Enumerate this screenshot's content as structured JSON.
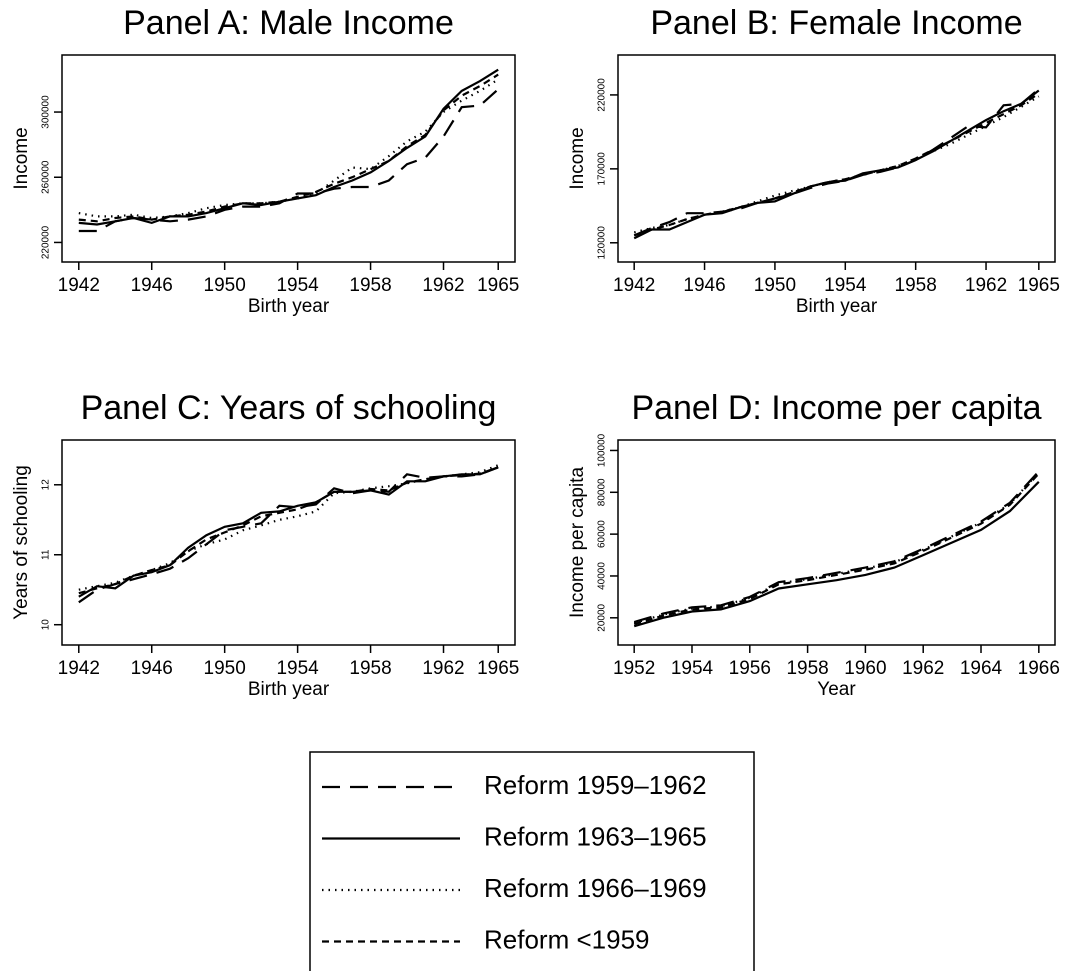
{
  "chart_data": [
    {
      "type": "line",
      "title": "Panel A: Male Income",
      "xlabel": "Birth year",
      "ylabel": "Income",
      "x": [
        1942,
        1943,
        1944,
        1945,
        1946,
        1947,
        1948,
        1949,
        1950,
        1951,
        1952,
        1953,
        1954,
        1955,
        1956,
        1957,
        1958,
        1959,
        1960,
        1961,
        1962,
        1963,
        1964,
        1965
      ],
      "xlim": [
        1941.08,
        1965.92
      ],
      "xticks": [
        1942,
        1946,
        1950,
        1954,
        1958,
        1962,
        1965
      ],
      "ylim": [
        208000,
        335000
      ],
      "yticks": [
        220000,
        260000,
        300000
      ],
      "series": [
        {
          "name": "Reform 1959–1962",
          "color": "#000000",
          "linestyle": "longdash",
          "values": [
            227000,
            227000,
            233000,
            235000,
            234000,
            233000,
            234000,
            236000,
            240000,
            242000,
            242000,
            244000,
            250000,
            250000,
            253000,
            254000,
            254000,
            258000,
            268000,
            272000,
            285000,
            303000,
            304000,
            314000
          ]
        },
        {
          "name": "Reform 1963–1965",
          "color": "#000000",
          "linestyle": "solid",
          "values": [
            232000,
            231000,
            233000,
            235000,
            232000,
            236000,
            236000,
            238000,
            241000,
            244000,
            243000,
            245000,
            247000,
            249000,
            254000,
            258000,
            263000,
            270000,
            278000,
            285000,
            302000,
            313000,
            319000,
            326000
          ]
        },
        {
          "name": "Reform 1966–1969",
          "color": "#000000",
          "linestyle": "dotted",
          "values": [
            238000,
            236000,
            236000,
            237000,
            235000,
            236000,
            238000,
            241000,
            243000,
            244000,
            244000,
            245000,
            247000,
            250000,
            258000,
            266000,
            265000,
            273000,
            282000,
            288000,
            300000,
            307000,
            313000,
            320000
          ]
        },
        {
          "name": "Reform <1959",
          "color": "#000000",
          "linestyle": "dashed",
          "values": [
            234000,
            233000,
            235000,
            236000,
            234000,
            236000,
            237000,
            239000,
            242000,
            244000,
            244000,
            245000,
            248000,
            251000,
            256000,
            260000,
            265000,
            270000,
            279000,
            286000,
            301000,
            310000,
            316000,
            323000
          ]
        }
      ]
    },
    {
      "type": "line",
      "title": "Panel B: Female Income",
      "xlabel": "Birth year",
      "ylabel": "Income",
      "x": [
        1942,
        1943,
        1944,
        1945,
        1946,
        1947,
        1948,
        1949,
        1950,
        1951,
        1952,
        1953,
        1954,
        1955,
        1956,
        1957,
        1958,
        1959,
        1960,
        1961,
        1962,
        1963,
        1964,
        1965
      ],
      "xlim": [
        1941.08,
        1965.92
      ],
      "xticks": [
        1942,
        1946,
        1950,
        1954,
        1958,
        1962,
        1965
      ],
      "ylim": [
        107000,
        247000
      ],
      "yticks": [
        120000,
        170000,
        220000
      ],
      "series": [
        {
          "name": "Reform 1959–1962",
          "color": "#000000",
          "linestyle": "longdash",
          "values": [
            125000,
            130000,
            134000,
            140000,
            140000,
            141000,
            143000,
            147000,
            150000,
            153000,
            157000,
            160000,
            162000,
            166000,
            168000,
            171000,
            176000,
            183000,
            191000,
            199000,
            198000,
            213000,
            214000,
            224000
          ]
        },
        {
          "name": "Reform 1963–1965",
          "color": "#000000",
          "linestyle": "solid",
          "values": [
            123000,
            129000,
            129000,
            134000,
            139000,
            140000,
            144000,
            147000,
            148000,
            153000,
            158000,
            161000,
            162000,
            167000,
            169000,
            171000,
            176000,
            182000,
            189000,
            196000,
            203000,
            209000,
            214000,
            223000
          ]
        },
        {
          "name": "Reform 1966–1969",
          "color": "#000000",
          "linestyle": "dotted",
          "values": [
            127000,
            130000,
            132000,
            136000,
            139000,
            141000,
            144000,
            148000,
            152000,
            155000,
            158000,
            161000,
            163000,
            166000,
            169000,
            172000,
            177000,
            182000,
            187000,
            193000,
            199000,
            205000,
            212000,
            219000
          ]
        },
        {
          "name": "Reform <1959",
          "color": "#000000",
          "linestyle": "dashed",
          "values": [
            125000,
            129000,
            132000,
            136000,
            139000,
            141000,
            144000,
            147000,
            150000,
            154000,
            158000,
            161000,
            163000,
            166000,
            169000,
            172000,
            177000,
            183000,
            189000,
            195000,
            201000,
            207000,
            213000,
            221000
          ]
        }
      ]
    },
    {
      "type": "line",
      "title": "Panel C: Years of schooling",
      "xlabel": "Birth year",
      "ylabel": "Years of schooling",
      "x": [
        1942,
        1943,
        1944,
        1945,
        1946,
        1947,
        1948,
        1949,
        1950,
        1951,
        1952,
        1953,
        1954,
        1955,
        1956,
        1957,
        1958,
        1959,
        1960,
        1961,
        1962,
        1963,
        1964,
        1965
      ],
      "xlim": [
        1941.08,
        1965.92
      ],
      "xticks": [
        1942,
        1946,
        1950,
        1954,
        1958,
        1962,
        1965
      ],
      "ylim": [
        9.71,
        12.64
      ],
      "yticks": [
        10,
        11,
        12
      ],
      "series": [
        {
          "name": "Reform 1959–1962",
          "color": "#000000",
          "linestyle": "longdash",
          "values": [
            10.32,
            10.5,
            10.58,
            10.65,
            10.72,
            10.8,
            10.95,
            11.15,
            11.35,
            11.4,
            11.45,
            11.7,
            11.68,
            11.72,
            11.95,
            11.88,
            11.92,
            11.9,
            12.15,
            12.1,
            12.12,
            12.12,
            12.15,
            12.25
          ]
        },
        {
          "name": "Reform 1963–1965",
          "color": "#000000",
          "linestyle": "solid",
          "values": [
            10.4,
            10.55,
            10.52,
            10.7,
            10.75,
            10.85,
            11.1,
            11.28,
            11.4,
            11.45,
            11.6,
            11.62,
            11.7,
            11.75,
            11.9,
            11.9,
            11.92,
            11.86,
            12.05,
            12.05,
            12.12,
            12.15,
            12.15,
            12.25
          ]
        },
        {
          "name": "Reform 1966–1969",
          "color": "#000000",
          "linestyle": "dotted",
          "values": [
            10.5,
            10.55,
            10.6,
            10.7,
            10.78,
            10.88,
            11.05,
            11.15,
            11.22,
            11.35,
            11.42,
            11.5,
            11.55,
            11.62,
            11.88,
            11.9,
            11.95,
            11.98,
            12.02,
            12.08,
            12.12,
            12.15,
            12.18,
            12.28
          ]
        },
        {
          "name": "Reform <1959",
          "color": "#000000",
          "linestyle": "dashed",
          "values": [
            10.45,
            10.52,
            10.58,
            10.7,
            10.78,
            10.85,
            11.05,
            11.22,
            11.32,
            11.42,
            11.55,
            11.6,
            11.65,
            11.75,
            11.9,
            11.9,
            11.94,
            11.92,
            12.03,
            12.08,
            12.12,
            12.14,
            12.16,
            12.25
          ]
        }
      ]
    },
    {
      "type": "line",
      "title": "Panel D: Income per capita",
      "xlabel": "Year",
      "ylabel": "Income per capita",
      "x": [
        1952,
        1953,
        1954,
        1955,
        1956,
        1957,
        1958,
        1959,
        1960,
        1961,
        1962,
        1963,
        1964,
        1965,
        1966
      ],
      "xlim": [
        1951.44,
        1966.56
      ],
      "xticks": [
        1952,
        1954,
        1956,
        1958,
        1960,
        1962,
        1964,
        1966
      ],
      "ylim": [
        7000,
        105000
      ],
      "yticks": [
        20000,
        40000,
        60000,
        80000,
        100000
      ],
      "series": [
        {
          "name": "Reform 1959–1962",
          "color": "#000000",
          "linestyle": "longdash",
          "values": [
            18000,
            22000,
            25000,
            26000,
            30000,
            37000,
            39000,
            41500,
            44000,
            47000,
            53000,
            59500,
            66000,
            75000,
            90000
          ]
        },
        {
          "name": "Reform 1963–1965",
          "color": "#000000",
          "linestyle": "solid",
          "values": [
            16000,
            20000,
            23000,
            24000,
            28000,
            34000,
            36000,
            38000,
            40500,
            44000,
            50000,
            56000,
            62000,
            71000,
            85000
          ]
        },
        {
          "name": "Reform 1966–1969",
          "color": "#000000",
          "linestyle": "dotted",
          "values": [
            17500,
            21500,
            24500,
            25500,
            29500,
            36500,
            38500,
            41000,
            43500,
            46500,
            52500,
            59000,
            65500,
            74500,
            89500
          ]
        },
        {
          "name": "Reform <1959",
          "color": "#000000",
          "linestyle": "dashed",
          "values": [
            17000,
            21000,
            24000,
            25000,
            29000,
            36000,
            38000,
            40500,
            43000,
            46000,
            52000,
            58500,
            65000,
            74000,
            89000
          ]
        }
      ]
    }
  ]
}
